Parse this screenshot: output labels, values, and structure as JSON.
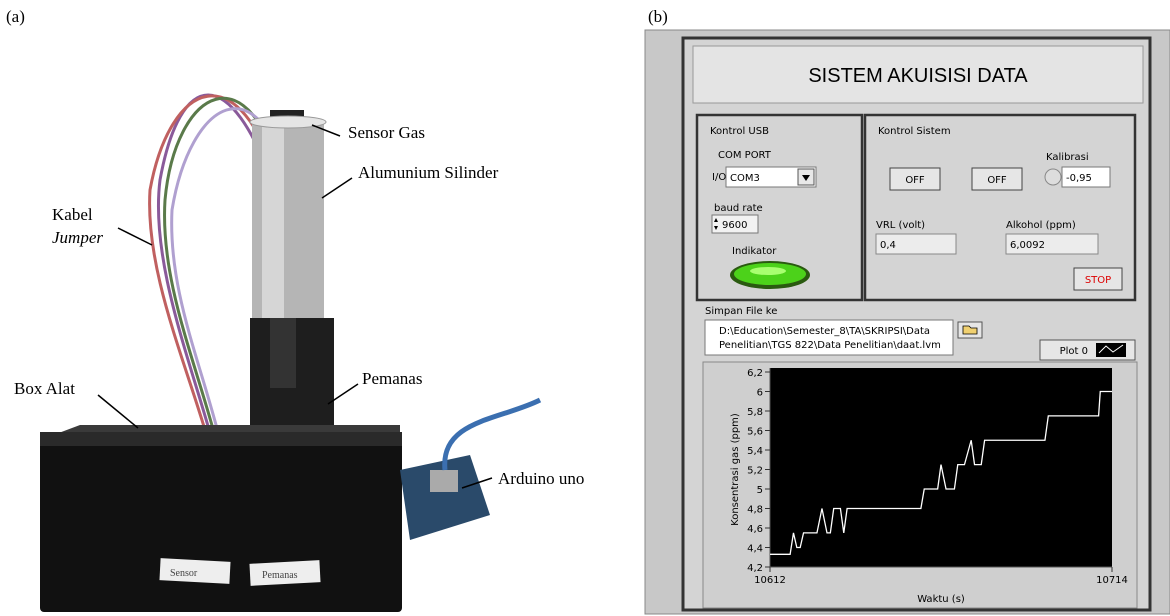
{
  "panel_a": {
    "label": "(a)",
    "annotations": {
      "sensor_gas": "Sensor Gas",
      "silinder": "Alumunium Silinder",
      "kabel": "Kabel",
      "jumper": "Jumper",
      "box_alat": "Box Alat",
      "pemanas": "Pemanas",
      "arduino": "Arduino uno"
    },
    "box_labels": [
      "Sensor",
      "Pemanas"
    ]
  },
  "panel_b": {
    "label": "(b)",
    "title": "SISTEM AKUISISI DATA",
    "kontrol_usb": {
      "title": "Kontrol USB",
      "com_port_label": "COM PORT",
      "com_port": "COM3",
      "baud_rate_label": "baud rate",
      "baud_rate": "9600",
      "indikator": "Indikator"
    },
    "kontrol_sistem": {
      "title": "Kontrol Sistem",
      "buttons": [
        "OFF",
        "OFF"
      ],
      "kalibrasi_label": "Kalibrasi",
      "kalibrasi": "-0,95",
      "vrl_label": "VRL (volt)",
      "vrl": "0,4",
      "alkohol_label": "Alkohol (ppm)",
      "alkohol": "6,0092",
      "stop": "STOP"
    },
    "simpan": {
      "label": "Simpan File ke",
      "path": [
        "D:\\Education\\Semester_8\\TA\\SKRIPSI\\Data",
        "Penelitian\\TGS 822\\Data Penelitian\\daat.lvm"
      ]
    }
  },
  "chart_data": {
    "type": "line",
    "x_label": "Waktu (s)",
    "y_label": "Konsentrasi gas (ppm)",
    "x": [
      10612,
      10618,
      10619,
      10620,
      10621,
      10622,
      10626,
      10627.5,
      10629,
      10630,
      10631,
      10633,
      10634,
      10635,
      10657,
      10658,
      10662,
      10663,
      10664.5,
      10667,
      10668,
      10670,
      10672,
      10673,
      10675,
      10676,
      10694,
      10695,
      10710,
      10710.5,
      10714
    ],
    "series": [
      {
        "name": "Plot 0",
        "color": "#ffffff",
        "values": [
          4.33,
          4.33,
          4.55,
          4.4,
          4.4,
          4.55,
          4.55,
          4.8,
          4.55,
          4.55,
          4.8,
          4.8,
          4.55,
          4.8,
          4.8,
          5.0,
          5.0,
          5.25,
          5.0,
          5.0,
          5.25,
          5.25,
          5.5,
          5.25,
          5.25,
          5.5,
          5.5,
          5.75,
          5.75,
          6.0,
          6.0
        ]
      }
    ],
    "xlim": [
      10612,
      10714
    ],
    "xticks": [
      10612,
      10714
    ],
    "ylim": [
      4.2,
      6.2
    ],
    "yticks": [
      {
        "value": 4.2,
        "label": "4,2"
      },
      {
        "value": 4.4,
        "label": "4,4"
      },
      {
        "value": 4.6,
        "label": "4,6"
      },
      {
        "value": 4.8,
        "label": "4,8"
      },
      5,
      {
        "value": 5.2,
        "label": "5,2"
      },
      {
        "value": 5.4,
        "label": "5,4"
      },
      {
        "value": 5.6,
        "label": "5,6"
      },
      {
        "value": 5.8,
        "label": "5,8"
      },
      6,
      {
        "value": 6.2,
        "label": "6,2"
      }
    ]
  }
}
